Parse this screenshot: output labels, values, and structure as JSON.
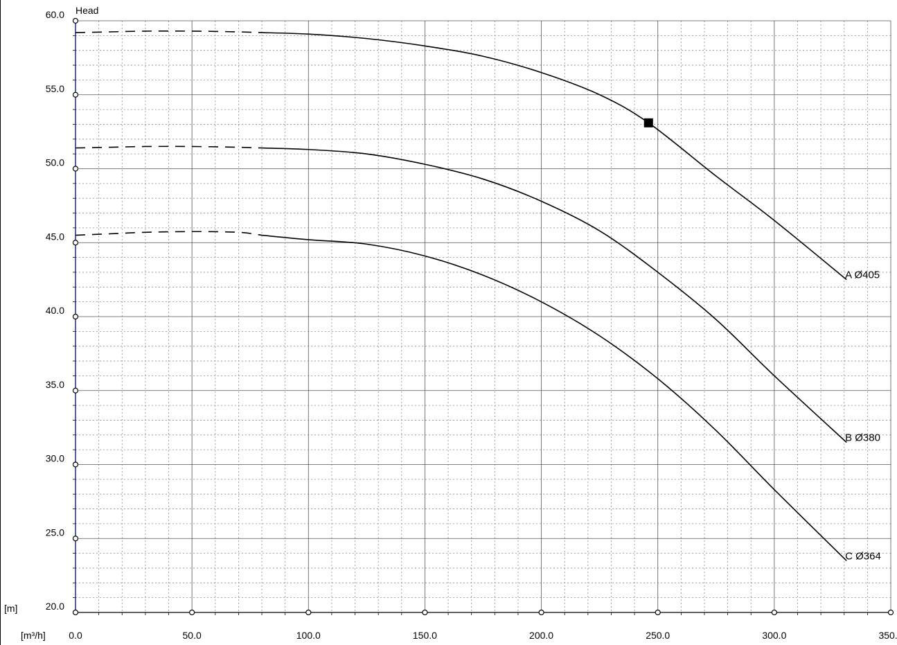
{
  "chart_data": {
    "type": "line",
    "title": "",
    "ylabel": "Head",
    "y_unit": "[m]",
    "x_unit": "[m³/h]",
    "xlim": [
      0,
      350
    ],
    "ylim": [
      20,
      60
    ],
    "x_ticks": [
      "0.0",
      "50.0",
      "100.0",
      "150.0",
      "200.0",
      "250.0",
      "300.0",
      "350.0"
    ],
    "y_ticks": [
      "20.0",
      "25.0",
      "30.0",
      "35.0",
      "40.0",
      "45.0",
      "50.0",
      "55.0",
      "60.0"
    ],
    "grid": true,
    "series": [
      {
        "name": "A  Ø405",
        "dashed_x": [
          0,
          15,
          30,
          50,
          70,
          80
        ],
        "dashed_y": [
          59.2,
          59.25,
          59.3,
          59.3,
          59.25,
          59.2
        ],
        "x": [
          80,
          100,
          125,
          150,
          175,
          200,
          225,
          246,
          275,
          300,
          331
        ],
        "y": [
          59.2,
          59.1,
          58.8,
          58.3,
          57.6,
          56.5,
          55.0,
          53.1,
          49.5,
          46.5,
          42.5
        ]
      },
      {
        "name": "B  Ø380",
        "dashed_x": [
          0,
          15,
          30,
          50,
          70,
          80
        ],
        "dashed_y": [
          51.4,
          51.45,
          51.5,
          51.5,
          51.45,
          51.4
        ],
        "x": [
          80,
          100,
          125,
          150,
          175,
          200,
          225,
          250,
          275,
          300,
          331
        ],
        "y": [
          51.4,
          51.3,
          51.0,
          50.3,
          49.3,
          47.8,
          45.8,
          43.0,
          39.8,
          36.0,
          31.5
        ]
      },
      {
        "name": "C  Ø364",
        "dashed_x": [
          0,
          15,
          30,
          50,
          70,
          80
        ],
        "dashed_y": [
          45.5,
          45.6,
          45.7,
          45.75,
          45.7,
          45.5
        ],
        "x": [
          80,
          100,
          125,
          150,
          175,
          200,
          225,
          250,
          275,
          300,
          331
        ],
        "y": [
          45.5,
          45.2,
          44.9,
          44.1,
          42.8,
          41.0,
          38.7,
          35.8,
          32.3,
          28.3,
          23.5
        ]
      }
    ],
    "operating_point": {
      "x": 246,
      "y": 53.1
    }
  }
}
